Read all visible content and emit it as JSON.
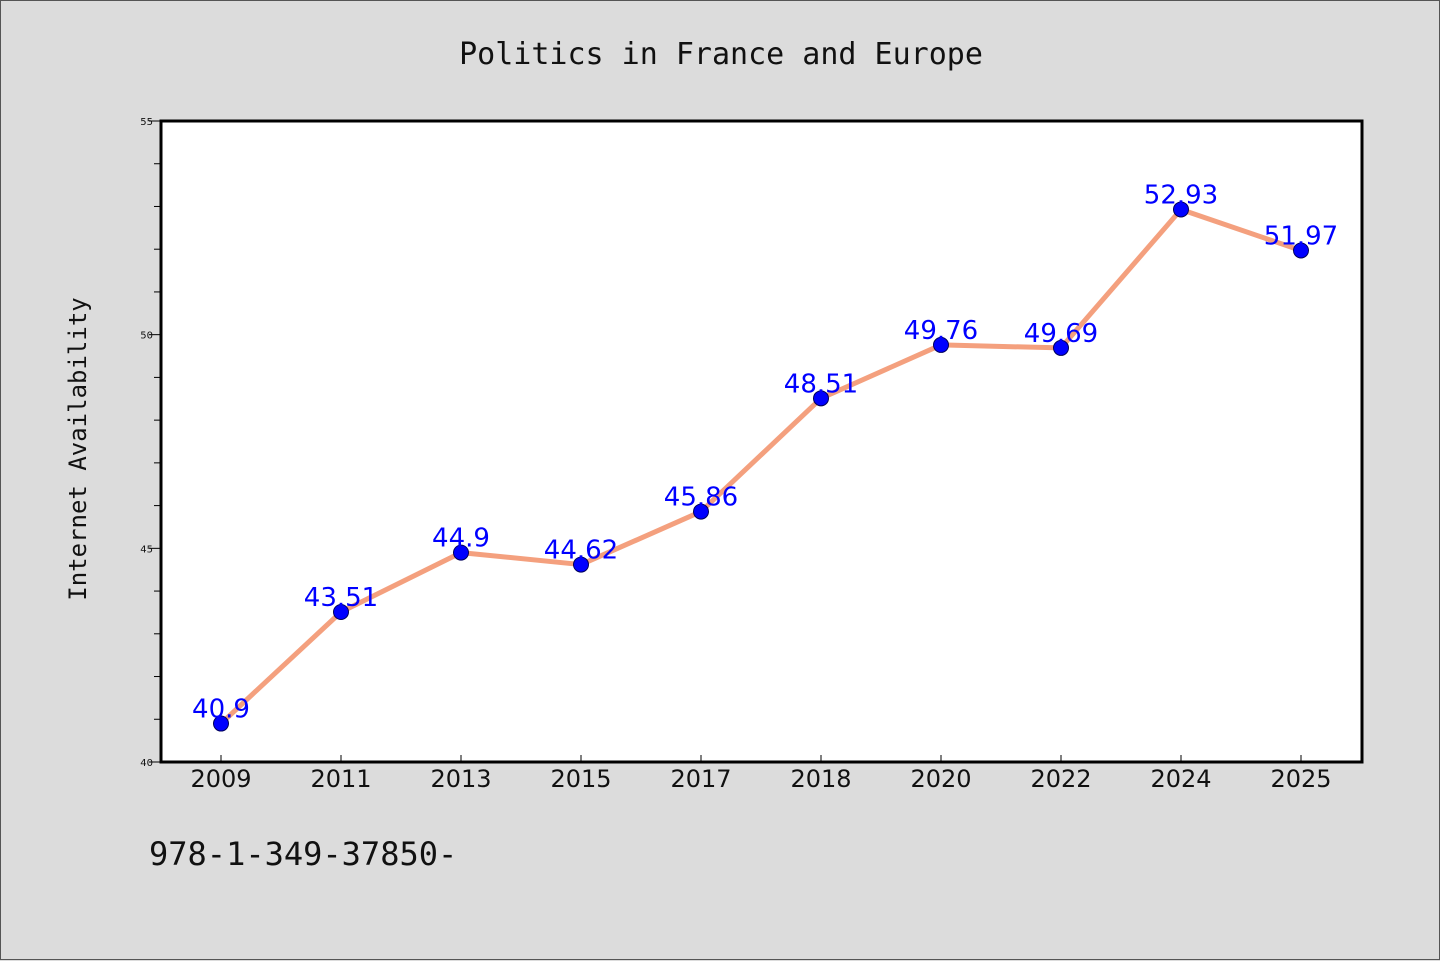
{
  "chart_data": {
    "type": "line",
    "title": "Politics in France and Europe",
    "xlabel": "",
    "ylabel": "Internet Availability",
    "categories": [
      "2009",
      "2011",
      "2013",
      "2015",
      "2017",
      "2018",
      "2020",
      "2022",
      "2024",
      "2025"
    ],
    "series": [
      {
        "values": [
          40.9,
          43.51,
          44.9,
          44.62,
          45.86,
          48.51,
          49.76,
          49.69,
          52.93,
          51.97
        ],
        "labels": [
          "40.9",
          "43.51",
          "44.9",
          "44.62",
          "45.86",
          "48.51",
          "49.76",
          "49.69",
          "52.93",
          "51.97"
        ]
      }
    ],
    "ylim": [
      40,
      55
    ],
    "yticks": [
      "40",
      "45",
      "50",
      "55"
    ],
    "grid": false,
    "legend": "none"
  },
  "footer_text": "978-1-349-37850-",
  "colors": {
    "background": "#dcdcdc",
    "plot_background": "#ffffff",
    "line": "#f4a07e",
    "marker": "#0000ff",
    "data_label": "#0000ff"
  }
}
